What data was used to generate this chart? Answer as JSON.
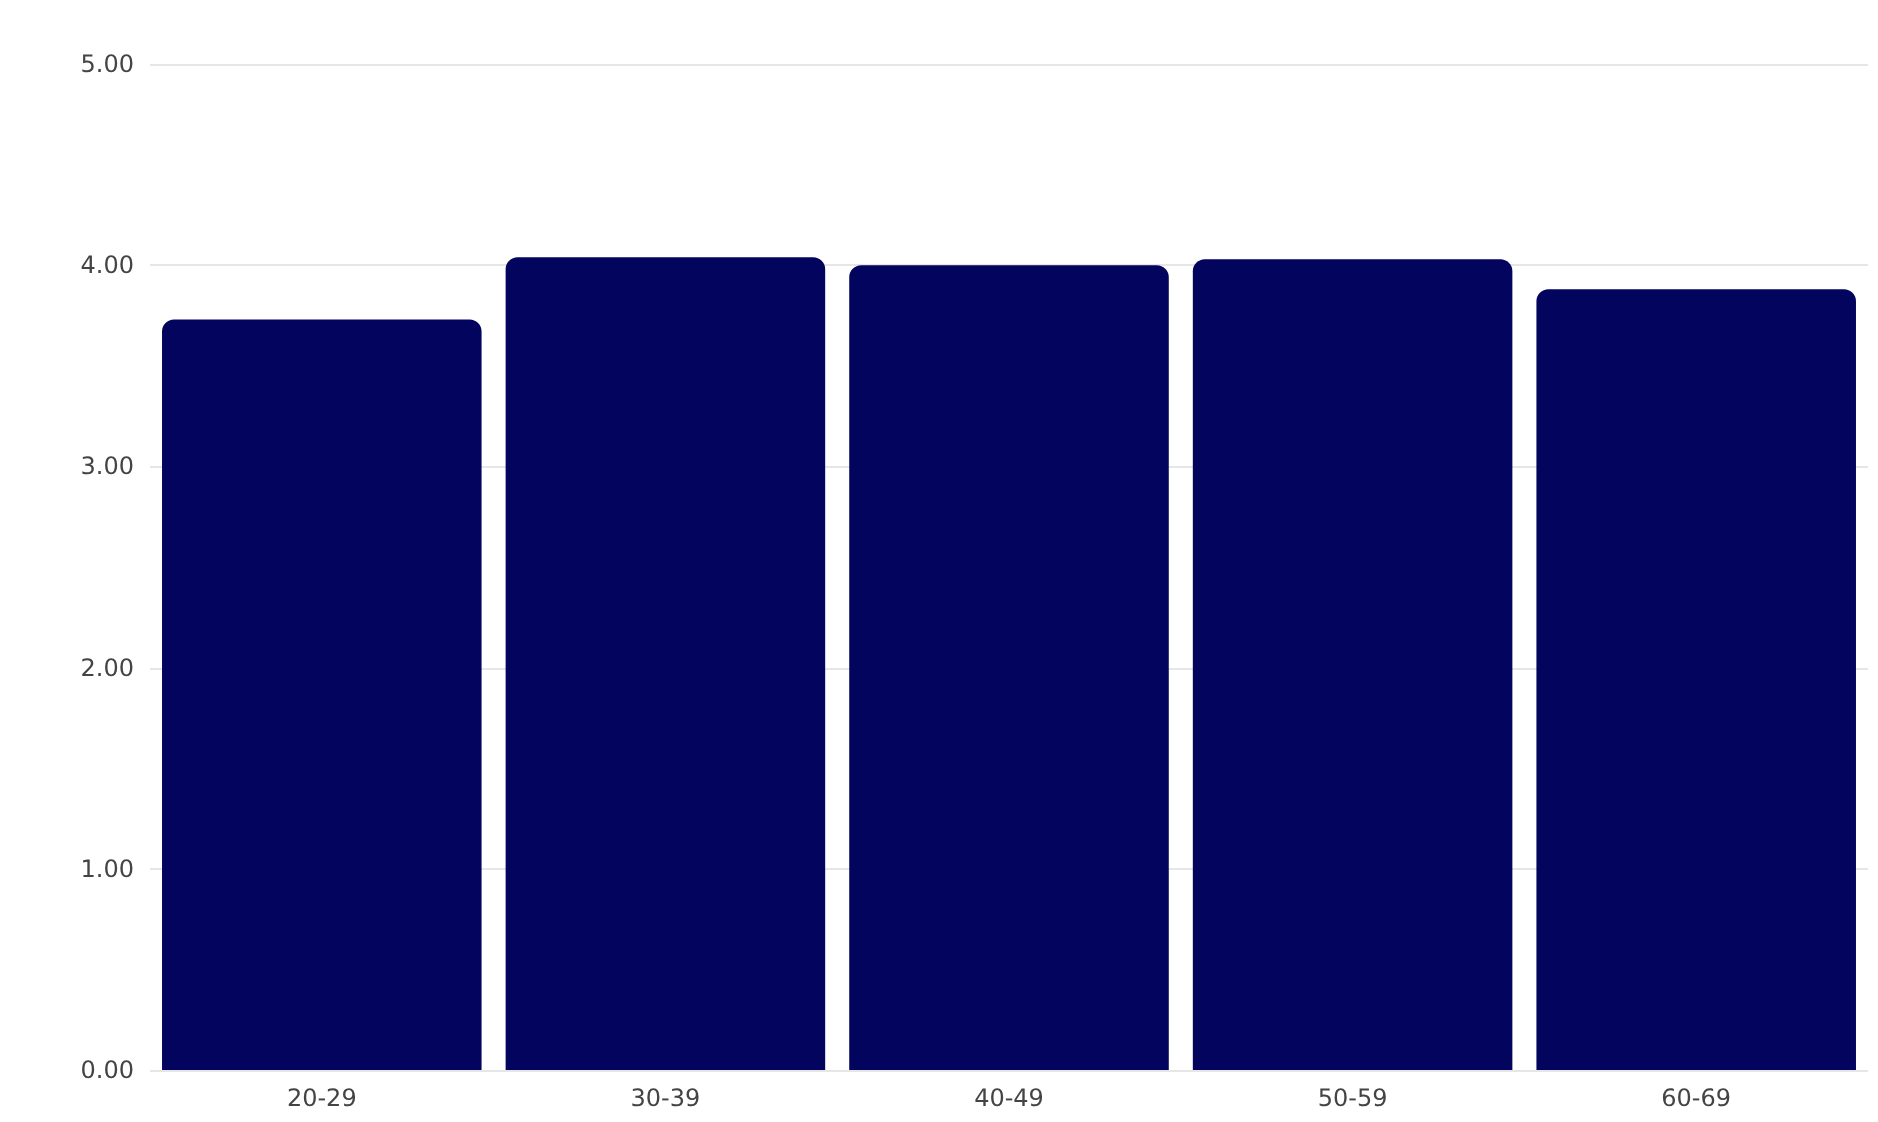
{
  "chart_data": {
    "type": "bar",
    "categories": [
      "20-29",
      "30-39",
      "40-49",
      "50-59",
      "60-69"
    ],
    "values": [
      3.73,
      4.04,
      4.0,
      4.03,
      3.88
    ],
    "color": "#03045e",
    "ylim": [
      0,
      5
    ],
    "yticks": [
      {
        "value": 0,
        "label": "0.00"
      },
      {
        "value": 1,
        "label": "1.00"
      },
      {
        "value": 2,
        "label": "2.00"
      },
      {
        "value": 3,
        "label": "3.00"
      },
      {
        "value": 4,
        "label": "4.00"
      },
      {
        "value": 5,
        "label": "5.00"
      }
    ],
    "grid": "y"
  }
}
